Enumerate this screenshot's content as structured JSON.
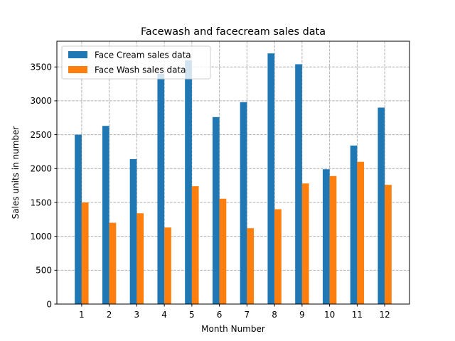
{
  "chart_data": {
    "type": "bar",
    "title": "Facewash and facecream sales data",
    "xlabel": "Month Number",
    "ylabel": "Sales units in number",
    "categories": [
      1,
      2,
      3,
      4,
      5,
      6,
      7,
      8,
      9,
      10,
      11,
      12
    ],
    "series": [
      {
        "name": "Face Cream sales data",
        "color": "#1f77b4",
        "values": [
          2500,
          2630,
          2140,
          3400,
          3600,
          2760,
          2980,
          3700,
          3540,
          1990,
          2340,
          2900
        ]
      },
      {
        "name": "Face Wash sales data",
        "color": "#ff7f0e",
        "values": [
          1500,
          1200,
          1340,
          1130,
          1740,
          1555,
          1120,
          1400,
          1780,
          1890,
          2100,
          1760
        ]
      }
    ],
    "ylim": [
      0,
      3880
    ],
    "yticks": [
      0,
      500,
      1000,
      1500,
      2000,
      2500,
      3000,
      3500
    ],
    "xlim": [
      0.1,
      12.9
    ],
    "grid": true,
    "grid_style": "dashed",
    "legend_position": "upper-left"
  }
}
